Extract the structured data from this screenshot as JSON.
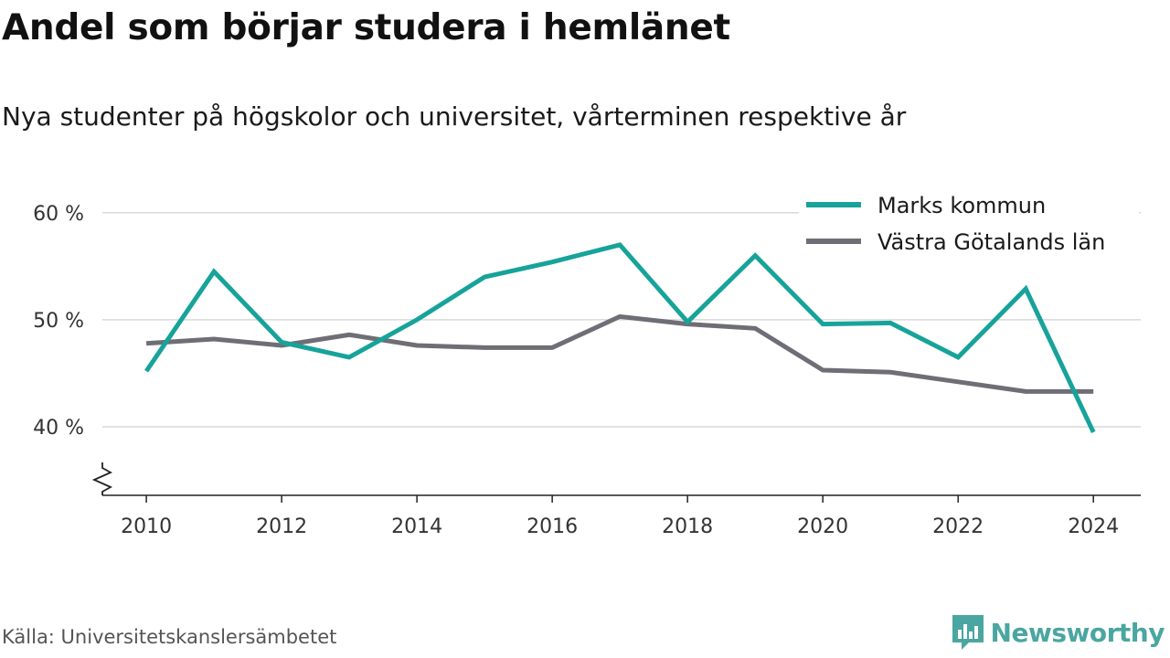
{
  "title": "Andel som börjar studera i hemlänet",
  "subtitle": "Nya studenter på högskolor och universitet, vårterminen respektive år",
  "source": "Källa: Universitetskanslersämbetet",
  "brand": {
    "name": "Newsworthy",
    "icon": "newsworthy-logo-icon",
    "color": "#4aa6a0"
  },
  "chart_data": {
    "type": "line",
    "x": [
      2010,
      2011,
      2012,
      2013,
      2014,
      2015,
      2016,
      2017,
      2018,
      2019,
      2020,
      2021,
      2022,
      2023,
      2024
    ],
    "series": [
      {
        "name": "Marks kommun",
        "color": "#17a39a",
        "values": [
          45.2,
          54.5,
          47.9,
          46.5,
          50.0,
          54.0,
          55.4,
          57.0,
          49.8,
          56.0,
          49.6,
          49.7,
          46.5,
          52.9,
          39.5
        ]
      },
      {
        "name": "Västra Götalands län",
        "color": "#6f6d75",
        "values": [
          47.8,
          48.2,
          47.6,
          48.6,
          47.6,
          47.4,
          47.4,
          50.3,
          49.6,
          49.2,
          45.3,
          45.1,
          44.2,
          43.3,
          43.3
        ]
      }
    ],
    "xticks": [
      2010,
      2012,
      2014,
      2016,
      2018,
      2020,
      2022,
      2024
    ],
    "yticks": [
      {
        "value": 40,
        "label": "40 %"
      },
      {
        "value": 50,
        "label": "50 %"
      },
      {
        "value": 60,
        "label": "60 %"
      }
    ],
    "xlim": [
      2009.35,
      2024.7
    ],
    "ylim": [
      33.6,
      62.8
    ],
    "axis_break": true,
    "grid": "horizontal",
    "legend_position": "top-right"
  }
}
